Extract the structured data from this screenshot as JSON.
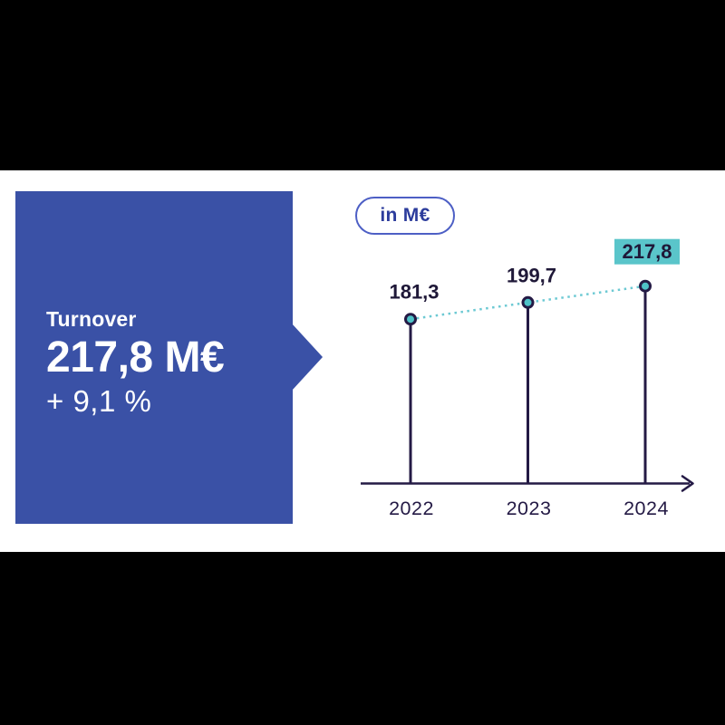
{
  "page": {
    "background": "#000000",
    "canvas_background": "#ffffff"
  },
  "callout": {
    "title": "Turnover",
    "value": "217,8 M€",
    "delta": "+ 9,1 %",
    "background": "#3a51a6",
    "text_color": "#ffffff"
  },
  "badge": {
    "label": "in M€",
    "border_color": "#4d5fc5",
    "text_color": "#2c3c9c"
  },
  "chart_data": {
    "type": "line",
    "subtype": "lollipop-with-dotted-trend",
    "title": "",
    "xlabel": "",
    "ylabel": "",
    "legend": "in M€",
    "legend_position": "top-left",
    "grid": false,
    "categories": [
      "2022",
      "2023",
      "2024"
    ],
    "values": [
      181.3,
      199.7,
      217.8
    ],
    "value_labels": [
      "181,3",
      "199,7",
      "217,8"
    ],
    "highlight_index": 2,
    "highlight_label": "217,8",
    "ylim": [
      0,
      260
    ],
    "colors": {
      "stem": "#241a45",
      "axis": "#241a45",
      "dot_fill": "#4fc2c8",
      "dot_stroke": "#241a45",
      "dotted_line": "#6cc9d3",
      "label_text": "#1f1838",
      "tick_text": "#241a45",
      "highlight_bg": "#5ac5ca"
    }
  }
}
